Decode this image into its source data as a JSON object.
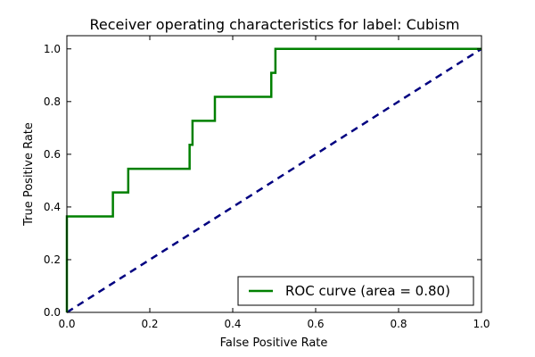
{
  "chart_data": {
    "type": "line",
    "title": "Receiver operating characteristics for label: Cubism",
    "xlabel": "False Positive Rate",
    "ylabel": "True Positive Rate",
    "xlim": [
      0.0,
      1.0
    ],
    "ylim": [
      0.0,
      1.05
    ],
    "xticks": [
      0.0,
      0.2,
      0.4,
      0.6,
      0.8,
      1.0
    ],
    "xtick_labels": [
      "0.0",
      "0.2",
      "0.4",
      "0.6",
      "0.8",
      "1.0"
    ],
    "yticks": [
      0.0,
      0.2,
      0.4,
      0.6,
      0.8,
      1.0
    ],
    "ytick_labels": [
      "0.0",
      "0.2",
      "0.4",
      "0.6",
      "0.8",
      "1.0"
    ],
    "grid": false,
    "legend_position": "lower-right",
    "series": [
      {
        "name": "ROC curve (area = 0.80)",
        "color": "#008000",
        "style": "solid",
        "x": [
          0.0,
          0.0,
          0.0,
          0.111,
          0.111,
          0.148,
          0.148,
          0.296,
          0.296,
          0.303,
          0.303,
          0.357,
          0.357,
          0.493,
          0.493,
          0.503,
          0.503,
          1.0
        ],
        "y": [
          0.0,
          0.091,
          0.364,
          0.364,
          0.455,
          0.455,
          0.545,
          0.545,
          0.636,
          0.636,
          0.727,
          0.727,
          0.818,
          0.818,
          0.909,
          0.909,
          1.0,
          1.0
        ]
      },
      {
        "color": "#000080",
        "style": "dashed",
        "x": [
          0.0,
          1.0
        ],
        "y": [
          0.0,
          1.0
        ]
      }
    ]
  }
}
